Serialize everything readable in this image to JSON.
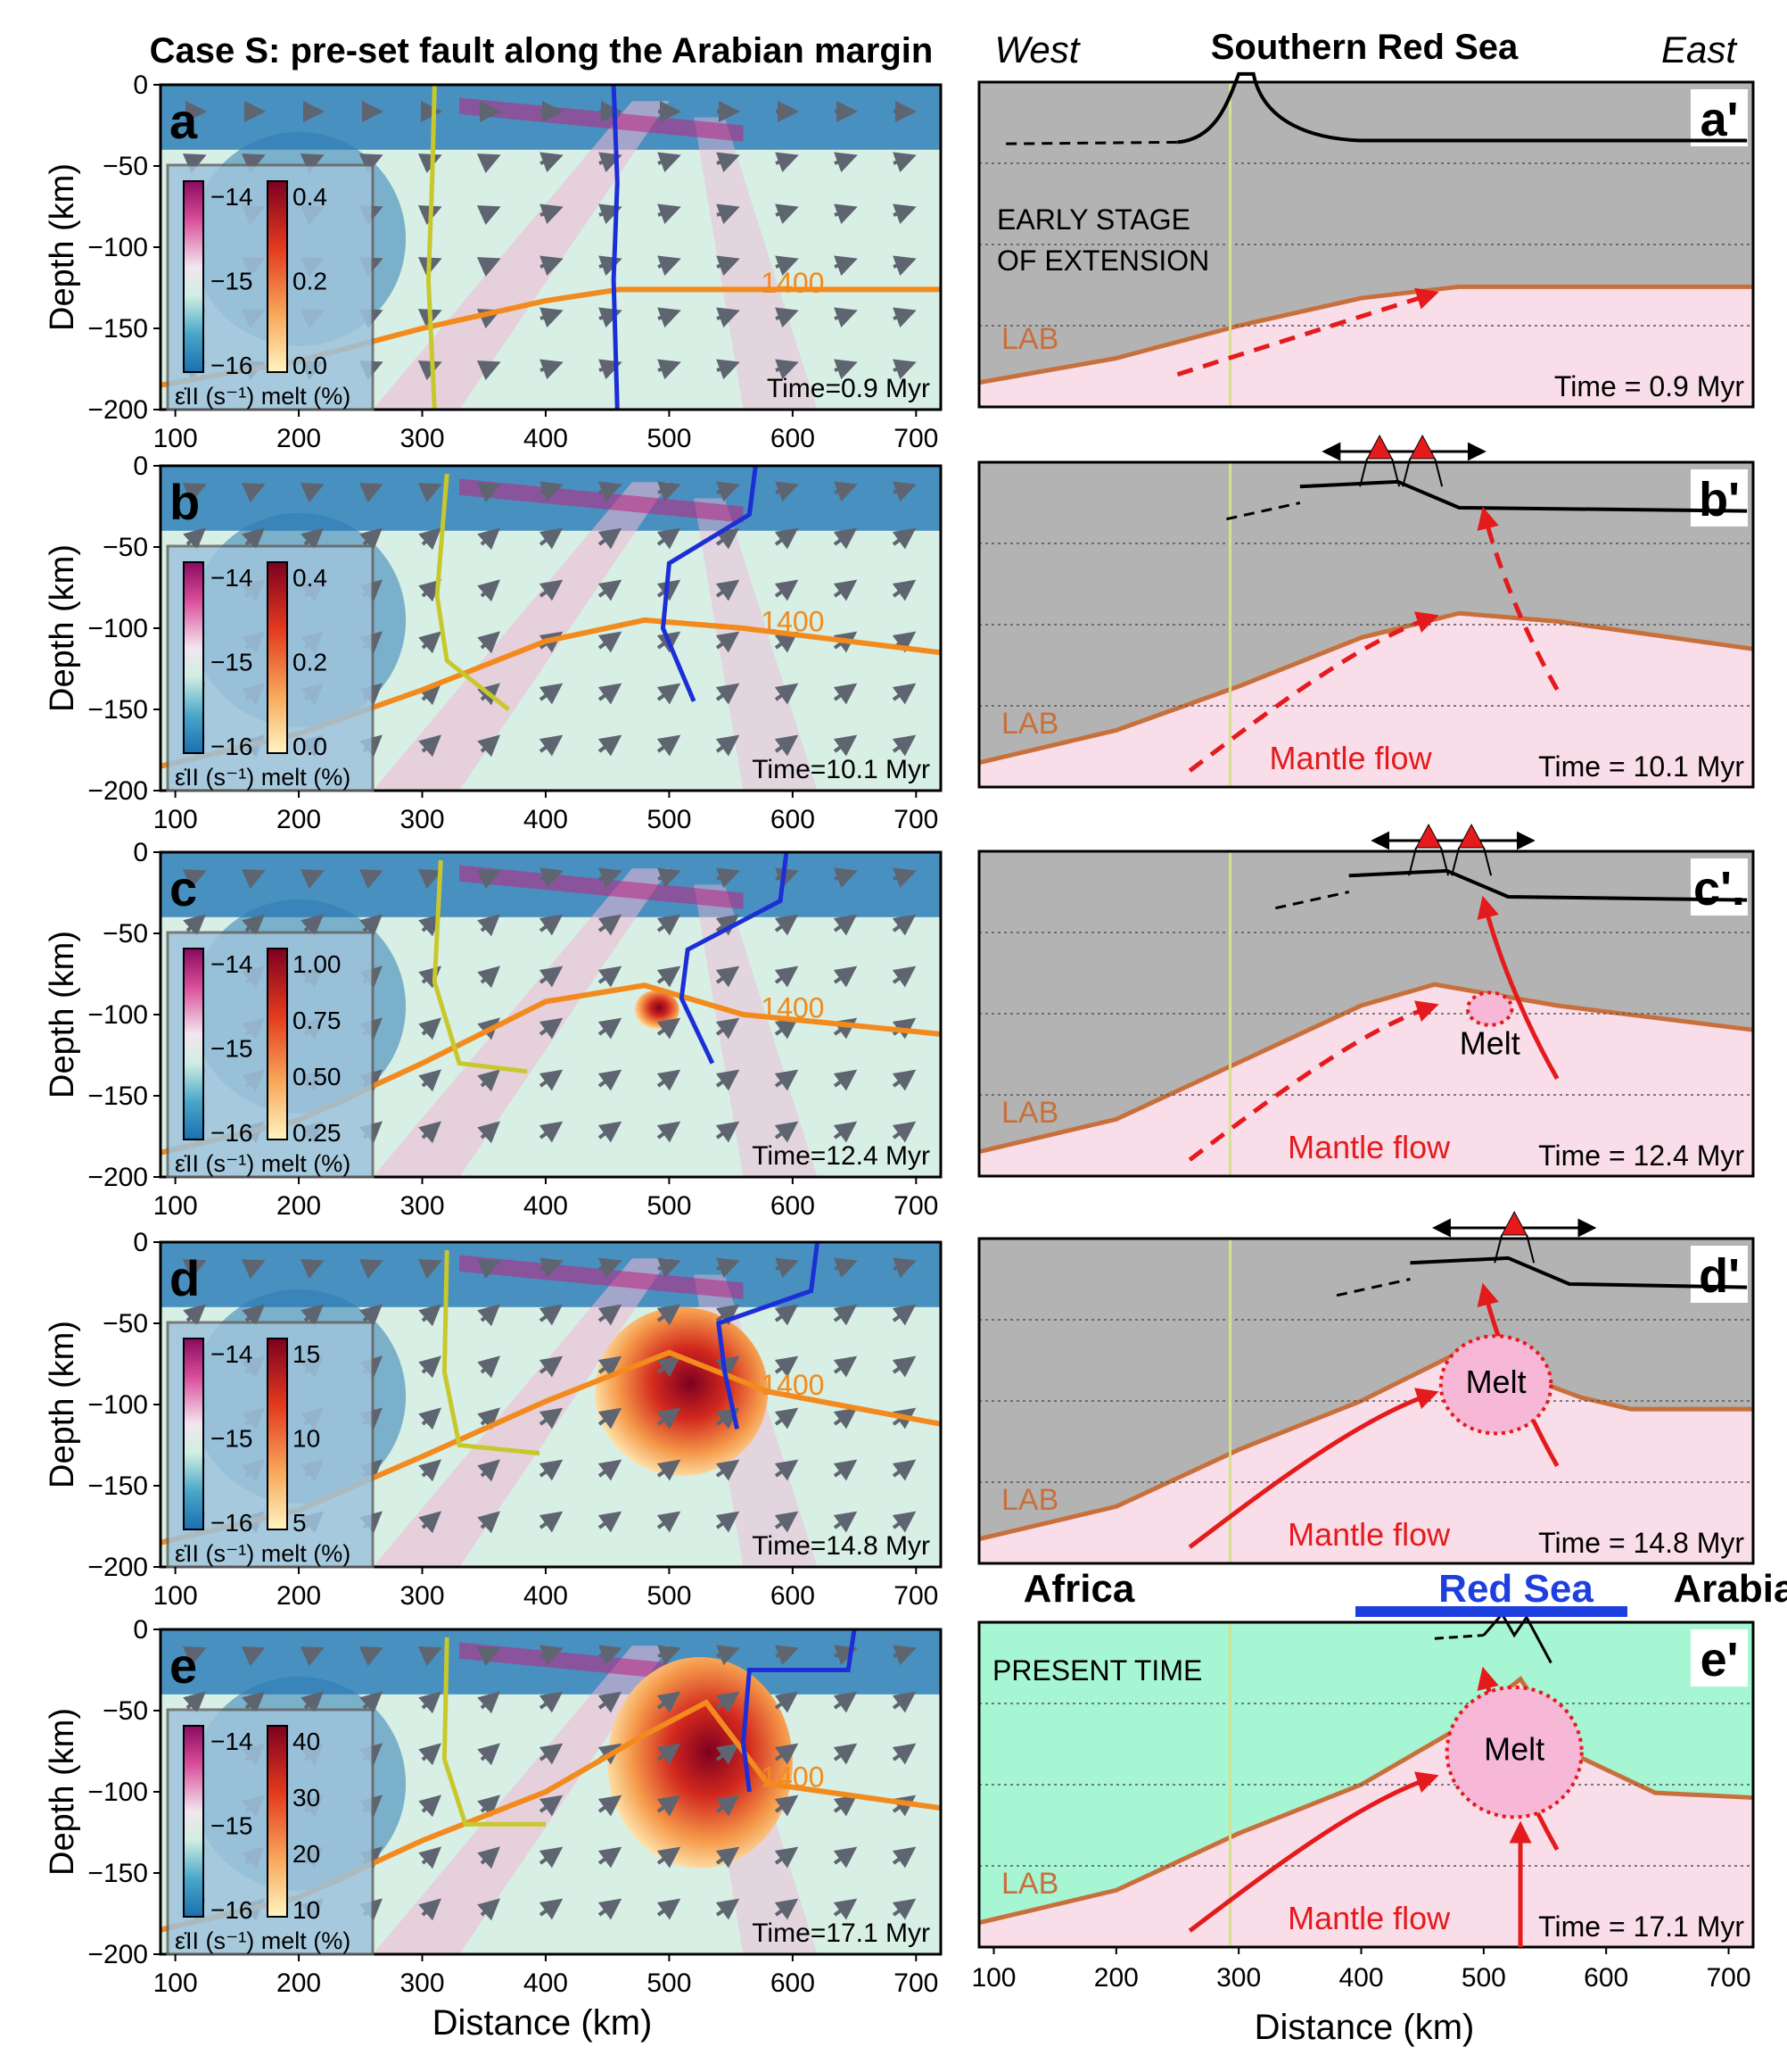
{
  "header": {
    "left_title": "Case S: pre-set fault along the Arabian margin",
    "west": "West",
    "center_title": "Southern Red Sea",
    "east": "East"
  },
  "axes": {
    "ylabel": "Depth (km)",
    "xlabel": "Distance (km)",
    "yticks": [
      "0",
      "−50",
      "−100",
      "−150",
      "−200"
    ],
    "xticks": [
      "100",
      "200",
      "300",
      "400",
      "500",
      "600",
      "700"
    ],
    "contour_label": "1400",
    "cbar_strain_ticks": [
      "−14",
      "−15",
      "−16"
    ],
    "cbar_strain_label": "ε̇II (s⁻¹)",
    "cbar_melt_label": "melt (%)"
  },
  "panels": [
    {
      "id": "a",
      "letter": "a",
      "time": "Time=0.9 Myr",
      "melt_ticks": [
        "0.4",
        "0.2",
        "0.0"
      ]
    },
    {
      "id": "b",
      "letter": "b",
      "time": "Time=10.1 Myr",
      "melt_ticks": [
        "0.4",
        "0.2",
        "0.0"
      ]
    },
    {
      "id": "c",
      "letter": "c",
      "time": "Time=12.4 Myr",
      "melt_ticks": [
        "1.00",
        "0.75",
        "0.50",
        "0.25"
      ]
    },
    {
      "id": "d",
      "letter": "d",
      "time": "Time=14.8 Myr",
      "melt_ticks": [
        "15",
        "10",
        "5"
      ]
    },
    {
      "id": "e",
      "letter": "e",
      "time": "Time=17.1 Myr",
      "melt_ticks": [
        "40",
        "30",
        "20",
        "10"
      ]
    }
  ],
  "schematics": [
    {
      "id": "a2",
      "letter": "a'",
      "time": "Time = 0.9 Myr",
      "stage": "EARLY STAGE\nOF EXTENSION",
      "lab": "LAB"
    },
    {
      "id": "b2",
      "letter": "b'",
      "time": "Time = 10.1 Myr",
      "lab": "LAB",
      "flow": "Mantle flow"
    },
    {
      "id": "c2",
      "letter": "c'.",
      "time": "Time = 12.4 Myr",
      "lab": "LAB",
      "flow": "Mantle flow",
      "melt": "Melt"
    },
    {
      "id": "d2",
      "letter": "d'",
      "time": "Time = 14.8 Myr",
      "lab": "LAB",
      "flow": "Mantle flow",
      "melt": "Melt"
    },
    {
      "id": "e2",
      "letter": "e'",
      "time": "Time = 17.1 Myr",
      "lab": "LAB",
      "flow": "Mantle flow",
      "melt": "Melt",
      "stage": "PRESENT TIME"
    }
  ],
  "labels_e2": {
    "africa": "Africa",
    "red_sea": "Red Sea",
    "arabia": "Arabia"
  },
  "colors": {
    "lab_line": "#c8703c",
    "mantle": "#f9dde9",
    "lithosphere": "#b3b3b3",
    "present_bg": "#a6f5d3",
    "red": "#e41a1c",
    "orange": "#f28a1e",
    "blue": "#1c2fd6",
    "yellow": "#c8c82c",
    "blue_bar": "#1e3fe0"
  }
}
